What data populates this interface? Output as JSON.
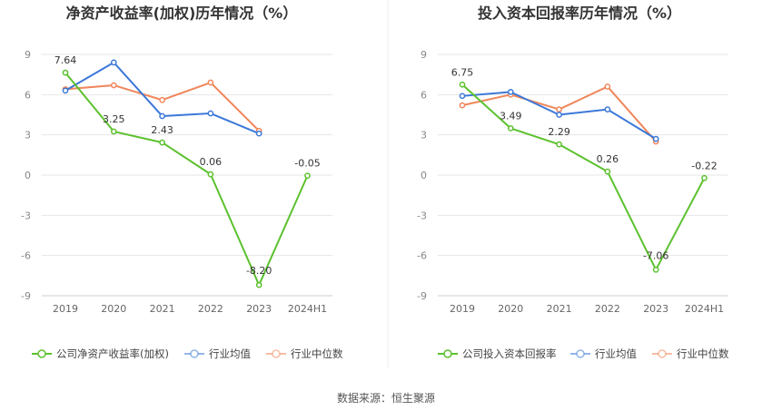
{
  "source_label": "数据来源：恒生聚源",
  "chart_data": [
    {
      "type": "line",
      "title": "净资产收益率(加权)历年情况（%）",
      "categories": [
        "2019",
        "2020",
        "2021",
        "2022",
        "2023",
        "2024H1"
      ],
      "y_ticks": [
        "9",
        "6",
        "3",
        "0",
        "-3",
        "-6",
        "-9"
      ],
      "ylim": [
        -9,
        9
      ],
      "grid": true,
      "legend_position": "bottom-left",
      "series": [
        {
          "name": "公司净资产收益率(加权)",
          "color": "#5cc12e",
          "values": [
            7.64,
            3.25,
            2.43,
            0.06,
            -8.2,
            -0.05
          ],
          "labels": [
            "7.64",
            "3.25",
            "2.43",
            "0.06",
            "-8.20",
            "-0.05"
          ]
        },
        {
          "name": "行业均值",
          "color": "#3c78d8",
          "values": [
            6.3,
            8.4,
            4.4,
            4.6,
            3.1,
            null
          ]
        },
        {
          "name": "行业中位数",
          "color": "#f0865a",
          "values": [
            6.4,
            6.7,
            5.6,
            6.9,
            3.3,
            null
          ]
        }
      ]
    },
    {
      "type": "line",
      "title": "投入资本回报率历年情况（%）",
      "categories": [
        "2019",
        "2020",
        "2021",
        "2022",
        "2023",
        "2024H1"
      ],
      "y_ticks": [
        "9",
        "6",
        "3",
        "0",
        "-3",
        "-6",
        "-9"
      ],
      "ylim": [
        -9,
        9
      ],
      "grid": true,
      "legend_position": "bottom-left",
      "series": [
        {
          "name": "公司投入资本回报率",
          "color": "#5cc12e",
          "values": [
            6.75,
            3.49,
            2.29,
            0.26,
            -7.06,
            -0.22
          ],
          "labels": [
            "6.75",
            "3.49",
            "2.29",
            "0.26",
            "-7.06",
            "-0.22"
          ]
        },
        {
          "name": "行业均值",
          "color": "#3c78d8",
          "values": [
            5.9,
            6.2,
            4.5,
            4.9,
            2.7,
            null
          ]
        },
        {
          "name": "行业中位数",
          "color": "#f0865a",
          "values": [
            5.2,
            6.0,
            4.9,
            6.6,
            2.5,
            null
          ]
        }
      ]
    }
  ]
}
